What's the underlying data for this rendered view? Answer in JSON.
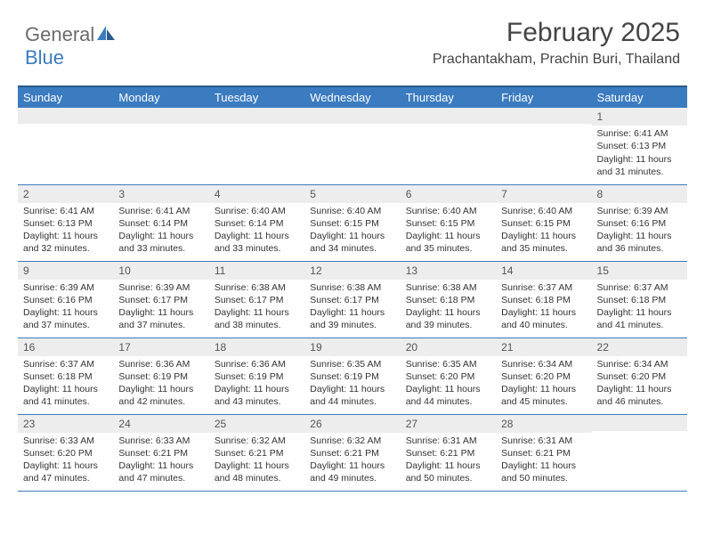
{
  "brand": {
    "part1": "General",
    "part2": "Blue"
  },
  "title": "February 2025",
  "location": "Prachantakham, Prachin Buri, Thailand",
  "colors": {
    "header_bg": "#3b7bbf",
    "header_border": "#2a5a8f",
    "daynum_bg": "#ededed",
    "text": "#333333",
    "row_divider": "#3b7bbf"
  },
  "weekdays": [
    "Sunday",
    "Monday",
    "Tuesday",
    "Wednesday",
    "Thursday",
    "Friday",
    "Saturday"
  ],
  "weeks": [
    [
      {
        "n": "",
        "sr": "",
        "ss": "",
        "dl": ""
      },
      {
        "n": "",
        "sr": "",
        "ss": "",
        "dl": ""
      },
      {
        "n": "",
        "sr": "",
        "ss": "",
        "dl": ""
      },
      {
        "n": "",
        "sr": "",
        "ss": "",
        "dl": ""
      },
      {
        "n": "",
        "sr": "",
        "ss": "",
        "dl": ""
      },
      {
        "n": "",
        "sr": "",
        "ss": "",
        "dl": ""
      },
      {
        "n": "1",
        "sr": "Sunrise: 6:41 AM",
        "ss": "Sunset: 6:13 PM",
        "dl": "Daylight: 11 hours and 31 minutes."
      }
    ],
    [
      {
        "n": "2",
        "sr": "Sunrise: 6:41 AM",
        "ss": "Sunset: 6:13 PM",
        "dl": "Daylight: 11 hours and 32 minutes."
      },
      {
        "n": "3",
        "sr": "Sunrise: 6:41 AM",
        "ss": "Sunset: 6:14 PM",
        "dl": "Daylight: 11 hours and 33 minutes."
      },
      {
        "n": "4",
        "sr": "Sunrise: 6:40 AM",
        "ss": "Sunset: 6:14 PM",
        "dl": "Daylight: 11 hours and 33 minutes."
      },
      {
        "n": "5",
        "sr": "Sunrise: 6:40 AM",
        "ss": "Sunset: 6:15 PM",
        "dl": "Daylight: 11 hours and 34 minutes."
      },
      {
        "n": "6",
        "sr": "Sunrise: 6:40 AM",
        "ss": "Sunset: 6:15 PM",
        "dl": "Daylight: 11 hours and 35 minutes."
      },
      {
        "n": "7",
        "sr": "Sunrise: 6:40 AM",
        "ss": "Sunset: 6:15 PM",
        "dl": "Daylight: 11 hours and 35 minutes."
      },
      {
        "n": "8",
        "sr": "Sunrise: 6:39 AM",
        "ss": "Sunset: 6:16 PM",
        "dl": "Daylight: 11 hours and 36 minutes."
      }
    ],
    [
      {
        "n": "9",
        "sr": "Sunrise: 6:39 AM",
        "ss": "Sunset: 6:16 PM",
        "dl": "Daylight: 11 hours and 37 minutes."
      },
      {
        "n": "10",
        "sr": "Sunrise: 6:39 AM",
        "ss": "Sunset: 6:17 PM",
        "dl": "Daylight: 11 hours and 37 minutes."
      },
      {
        "n": "11",
        "sr": "Sunrise: 6:38 AM",
        "ss": "Sunset: 6:17 PM",
        "dl": "Daylight: 11 hours and 38 minutes."
      },
      {
        "n": "12",
        "sr": "Sunrise: 6:38 AM",
        "ss": "Sunset: 6:17 PM",
        "dl": "Daylight: 11 hours and 39 minutes."
      },
      {
        "n": "13",
        "sr": "Sunrise: 6:38 AM",
        "ss": "Sunset: 6:18 PM",
        "dl": "Daylight: 11 hours and 39 minutes."
      },
      {
        "n": "14",
        "sr": "Sunrise: 6:37 AM",
        "ss": "Sunset: 6:18 PM",
        "dl": "Daylight: 11 hours and 40 minutes."
      },
      {
        "n": "15",
        "sr": "Sunrise: 6:37 AM",
        "ss": "Sunset: 6:18 PM",
        "dl": "Daylight: 11 hours and 41 minutes."
      }
    ],
    [
      {
        "n": "16",
        "sr": "Sunrise: 6:37 AM",
        "ss": "Sunset: 6:18 PM",
        "dl": "Daylight: 11 hours and 41 minutes."
      },
      {
        "n": "17",
        "sr": "Sunrise: 6:36 AM",
        "ss": "Sunset: 6:19 PM",
        "dl": "Daylight: 11 hours and 42 minutes."
      },
      {
        "n": "18",
        "sr": "Sunrise: 6:36 AM",
        "ss": "Sunset: 6:19 PM",
        "dl": "Daylight: 11 hours and 43 minutes."
      },
      {
        "n": "19",
        "sr": "Sunrise: 6:35 AM",
        "ss": "Sunset: 6:19 PM",
        "dl": "Daylight: 11 hours and 44 minutes."
      },
      {
        "n": "20",
        "sr": "Sunrise: 6:35 AM",
        "ss": "Sunset: 6:20 PM",
        "dl": "Daylight: 11 hours and 44 minutes."
      },
      {
        "n": "21",
        "sr": "Sunrise: 6:34 AM",
        "ss": "Sunset: 6:20 PM",
        "dl": "Daylight: 11 hours and 45 minutes."
      },
      {
        "n": "22",
        "sr": "Sunrise: 6:34 AM",
        "ss": "Sunset: 6:20 PM",
        "dl": "Daylight: 11 hours and 46 minutes."
      }
    ],
    [
      {
        "n": "23",
        "sr": "Sunrise: 6:33 AM",
        "ss": "Sunset: 6:20 PM",
        "dl": "Daylight: 11 hours and 47 minutes."
      },
      {
        "n": "24",
        "sr": "Sunrise: 6:33 AM",
        "ss": "Sunset: 6:21 PM",
        "dl": "Daylight: 11 hours and 47 minutes."
      },
      {
        "n": "25",
        "sr": "Sunrise: 6:32 AM",
        "ss": "Sunset: 6:21 PM",
        "dl": "Daylight: 11 hours and 48 minutes."
      },
      {
        "n": "26",
        "sr": "Sunrise: 6:32 AM",
        "ss": "Sunset: 6:21 PM",
        "dl": "Daylight: 11 hours and 49 minutes."
      },
      {
        "n": "27",
        "sr": "Sunrise: 6:31 AM",
        "ss": "Sunset: 6:21 PM",
        "dl": "Daylight: 11 hours and 50 minutes."
      },
      {
        "n": "28",
        "sr": "Sunrise: 6:31 AM",
        "ss": "Sunset: 6:21 PM",
        "dl": "Daylight: 11 hours and 50 minutes."
      },
      {
        "n": "",
        "sr": "",
        "ss": "",
        "dl": ""
      }
    ]
  ]
}
